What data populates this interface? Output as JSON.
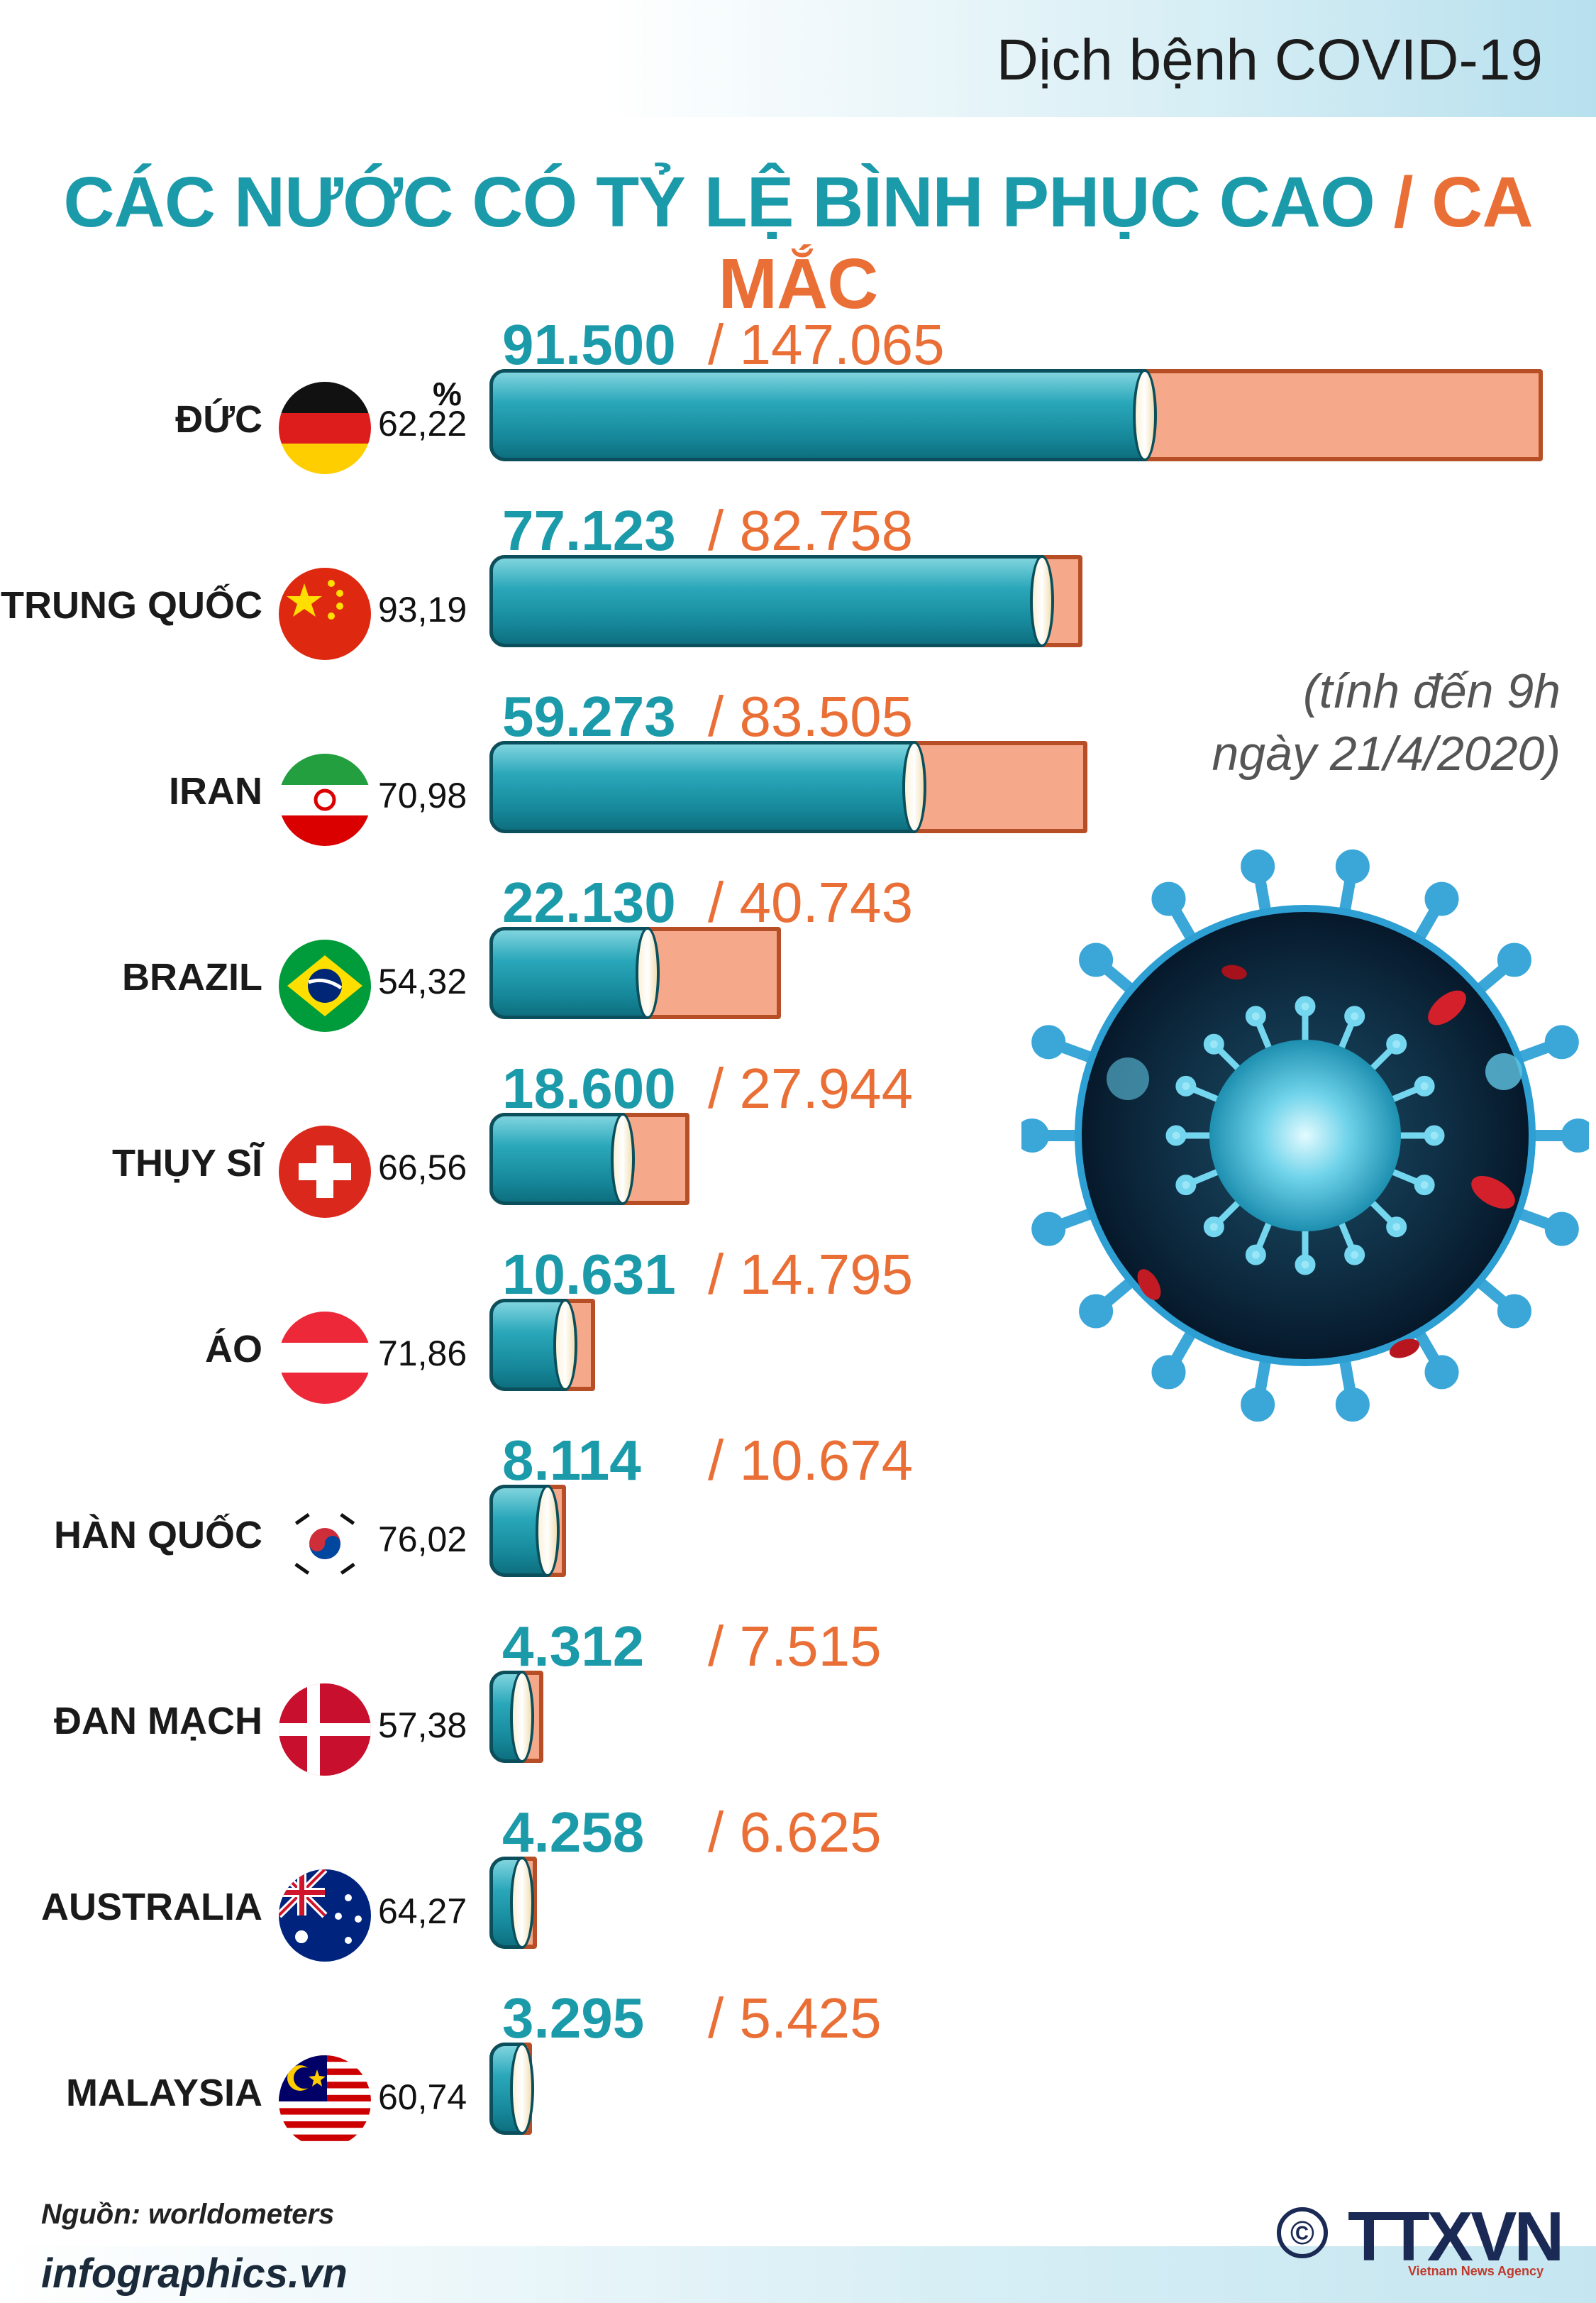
{
  "header": {
    "topic": "Dịch bệnh COVID-19",
    "title_part1": "CÁC NƯỚC CÓ TỶ LỆ BÌNH PHỤC CAO",
    "title_sep": " / ",
    "title_part2": "CA MẮC"
  },
  "note_line1": "(tính đến 9h",
  "note_line2": "ngày 21/4/2020)",
  "chart_data": {
    "type": "bar",
    "pct_unit": "%",
    "colors": {
      "recovered": "#1b9aaa",
      "cases": "#f5a88a",
      "cases_text": "#ea6f36"
    },
    "rows": [
      {
        "country": "ĐỨC",
        "flag": "germany",
        "pct": "62,22",
        "recovered": 91500,
        "cases": 147065,
        "recovered_label": "91.500",
        "cases_label": "147.065"
      },
      {
        "country": "TRUNG QUỐC",
        "flag": "china",
        "pct": "93,19",
        "recovered": 77123,
        "cases": 82758,
        "recovered_label": "77.123",
        "cases_label": "82.758"
      },
      {
        "country": "IRAN",
        "flag": "iran",
        "pct": "70,98",
        "recovered": 59273,
        "cases": 83505,
        "recovered_label": "59.273",
        "cases_label": "83.505"
      },
      {
        "country": "BRAZIL",
        "flag": "brazil",
        "pct": "54,32",
        "recovered": 22130,
        "cases": 40743,
        "recovered_label": "22.130",
        "cases_label": "40.743"
      },
      {
        "country": "THỤY SĨ",
        "flag": "switzerland",
        "pct": "66,56",
        "recovered": 18600,
        "cases": 27944,
        "recovered_label": "18.600",
        "cases_label": "27.944"
      },
      {
        "country": "ÁO",
        "flag": "austria",
        "pct": "71,86",
        "recovered": 10631,
        "cases": 14795,
        "recovered_label": "10.631",
        "cases_label": "14.795"
      },
      {
        "country": "HÀN QUỐC",
        "flag": "south-korea",
        "pct": "76,02",
        "recovered": 8114,
        "cases": 10674,
        "recovered_label": "8.114",
        "cases_label": "10.674"
      },
      {
        "country": "ĐAN MẠCH",
        "flag": "denmark",
        "pct": "57,38",
        "recovered": 4312,
        "cases": 7515,
        "recovered_label": "4.312",
        "cases_label": "7.515"
      },
      {
        "country": "AUSTRALIA",
        "flag": "australia",
        "pct": "64,27",
        "recovered": 4258,
        "cases": 6625,
        "recovered_label": "4.258",
        "cases_label": "6.625"
      },
      {
        "country": "MALAYSIA",
        "flag": "malaysia",
        "pct": "60,74",
        "recovered": 3295,
        "cases": 5425,
        "recovered_label": "3.295",
        "cases_label": "5.425"
      }
    ]
  },
  "footer": {
    "source": "Nguồn: worldometers",
    "site": "infographics.vn",
    "copyright_symbol": "©",
    "logo": "TTXVN",
    "logo_sub": "Vietnam News Agency"
  },
  "icons": {
    "virus": "coronavirus-illustration-icon"
  }
}
